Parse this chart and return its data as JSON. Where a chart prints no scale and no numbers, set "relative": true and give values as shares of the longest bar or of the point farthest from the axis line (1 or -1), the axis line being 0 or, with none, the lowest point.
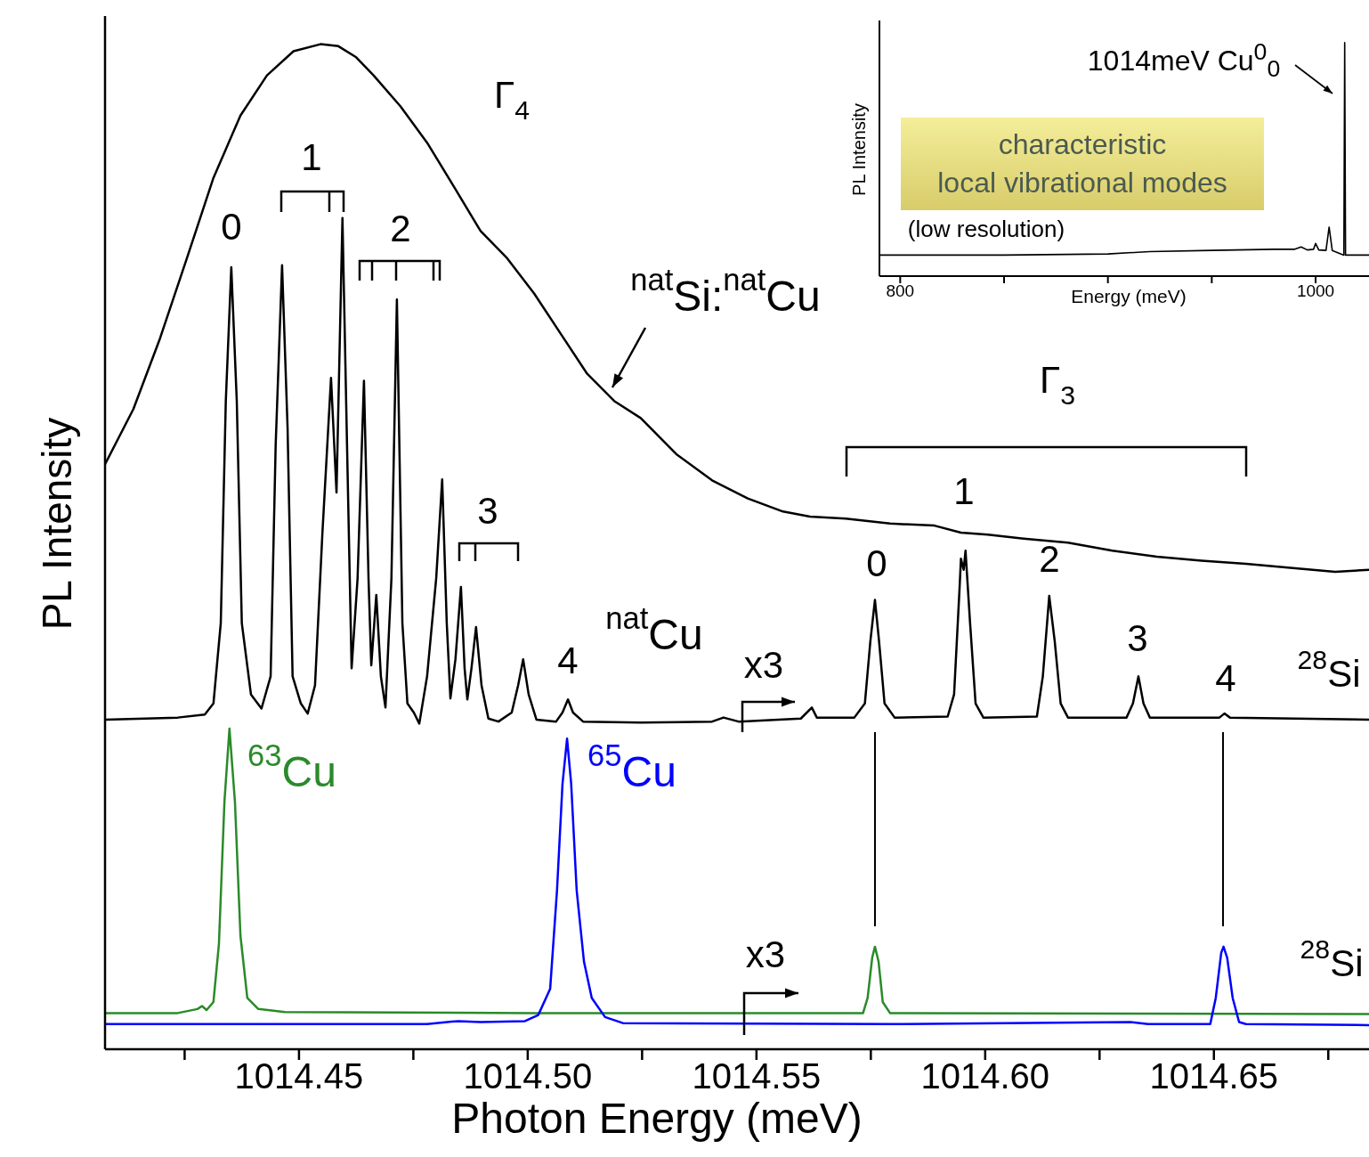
{
  "chart_data": [
    {
      "type": "line",
      "xlabel": "Photon Energy (meV)",
      "ylabel": "PL Intensity",
      "relative": true,
      "xlim": [
        1014.4076,
        1014.6839
      ],
      "xticks": [
        {
          "value": 1014.425,
          "label": null
        },
        1014.45,
        {
          "value": 1014.475,
          "label": null
        },
        {
          "value": 1014.5,
          "label": "1014.50"
        },
        {
          "value": 1014.525,
          "label": null
        },
        1014.55,
        {
          "value": 1014.575,
          "label": null
        },
        {
          "value": 1014.6,
          "label": "1014.60"
        },
        {
          "value": 1014.625,
          "label": null
        },
        1014.65,
        {
          "value": 1014.675,
          "label": null
        }
      ],
      "series": [
        {
          "name": "$^{nat}$Si:$^{nat}$Cu",
          "color": "#000000",
          "x": [
            1014.4076,
            1014.4138,
            1014.4196,
            1014.4255,
            1014.4313,
            1014.4372,
            1014.443,
            1014.4488,
            1014.4547,
            1014.4586,
            1014.4625,
            1014.4663,
            1014.4722,
            1014.478,
            1014.4839,
            1014.4897,
            1014.4955,
            1014.5014,
            1014.5072,
            1014.513,
            1014.5189,
            1014.5247,
            1014.5325,
            1014.5403,
            1014.5481,
            1014.5558,
            1014.5617,
            1014.5695,
            1014.5792,
            1014.5889,
            1014.5947,
            1014.6006,
            1014.6084,
            1014.6181,
            1014.6278,
            1014.6375,
            1014.6473,
            1014.657,
            1014.6667,
            1014.6765,
            1014.6839
          ],
          "values": [
            0.582,
            0.637,
            0.707,
            0.787,
            0.867,
            0.929,
            0.969,
            0.993,
            1.0,
            0.998,
            0.987,
            0.969,
            0.938,
            0.902,
            0.858,
            0.814,
            0.787,
            0.752,
            0.712,
            0.672,
            0.645,
            0.628,
            0.592,
            0.566,
            0.548,
            0.535,
            0.53,
            0.528,
            0.523,
            0.521,
            0.514,
            0.512,
            0.508,
            0.504,
            0.496,
            0.49,
            0.486,
            0.483,
            0.479,
            0.475,
            0.477
          ]
        },
        {
          "name": "$^{nat}$Cu",
          "color": "#000000",
          "x": [
            1014.4076,
            1014.4235,
            1014.4294,
            1014.4313,
            1014.4329,
            1014.434,
            1014.4352,
            1014.4364,
            1014.4375,
            1014.4395,
            1014.4418,
            1014.4438,
            1014.4449,
            1014.4463,
            1014.4475,
            1014.4486,
            1014.4504,
            1014.4519,
            1014.4535,
            1014.4551,
            1014.457,
            1014.4582,
            1014.4595,
            1014.4605,
            1014.4615,
            1014.4628,
            1014.4642,
            1014.4652,
            1014.4658,
            1014.4669,
            1014.4679,
            1014.4689,
            1014.4702,
            1014.4714,
            1014.4726,
            1014.4737,
            1014.4751,
            1014.4763,
            1014.478,
            1014.48,
            1014.4813,
            1014.4823,
            1014.4831,
            1014.4842,
            1014.4854,
            1014.4862,
            1014.4868,
            1014.4877,
            1014.4887,
            1014.4899,
            1014.4914,
            1014.4936,
            1014.4965,
            1014.4979,
            1014.499,
            1014.5002,
            1014.5019,
            1014.5062,
            1014.5076,
            1014.5088,
            1014.5099,
            1014.5121,
            1014.5247,
            1014.5403,
            1014.5428,
            1014.5461,
            1014.5597,
            1014.5621,
            1014.5632,
            1014.5714,
            1014.5737,
            1014.5749,
            1014.5759,
            1014.5768,
            1014.578,
            1014.5802,
            1014.5918,
            1014.5932,
            1014.5944,
            1014.5947,
            1014.5953,
            1014.5957,
            1014.5967,
            1014.5979,
            1014.5996,
            1014.6113,
            1014.6126,
            1014.614,
            1014.6152,
            1014.6165,
            1014.6181,
            1014.6309,
            1014.6323,
            1014.6335,
            1014.6346,
            1014.636,
            1014.6512,
            1014.6523,
            1014.6535,
            1014.6839
          ],
          "values": [
            0.328,
            0.33,
            0.333,
            0.344,
            0.424,
            0.645,
            0.778,
            0.645,
            0.424,
            0.353,
            0.339,
            0.371,
            0.601,
            0.78,
            0.619,
            0.371,
            0.344,
            0.334,
            0.362,
            0.512,
            0.668,
            0.554,
            0.827,
            0.601,
            0.379,
            0.468,
            0.665,
            0.468,
            0.382,
            0.452,
            0.371,
            0.34,
            0.468,
            0.746,
            0.424,
            0.344,
            0.335,
            0.324,
            0.371,
            0.469,
            0.567,
            0.424,
            0.349,
            0.388,
            0.46,
            0.379,
            0.348,
            0.379,
            0.42,
            0.362,
            0.329,
            0.326,
            0.335,
            0.362,
            0.388,
            0.353,
            0.328,
            0.326,
            0.335,
            0.348,
            0.335,
            0.326,
            0.325,
            0.326,
            0.33,
            0.326,
            0.329,
            0.34,
            0.33,
            0.33,
            0.344,
            0.406,
            0.447,
            0.406,
            0.344,
            0.33,
            0.331,
            0.353,
            0.459,
            0.488,
            0.477,
            0.496,
            0.424,
            0.344,
            0.33,
            0.331,
            0.371,
            0.451,
            0.406,
            0.344,
            0.33,
            0.33,
            0.344,
            0.371,
            0.344,
            0.33,
            0.33,
            0.334,
            0.33,
            0.328
          ]
        },
        {
          "name": "$^{63}$Cu",
          "color": "#2a8a2a",
          "x": [
            1014.4076,
            1014.4235,
            1014.4278,
            1014.4288,
            1014.4298,
            1014.4313,
            1014.4325,
            1014.4337,
            1014.4348,
            1014.436,
            1014.4372,
            1014.4387,
            1014.4411,
            1014.4469,
            1014.5014,
            1014.5733,
            1014.5743,
            1014.5753,
            1014.5759,
            1014.5767,
            1014.5776,
            1014.5792,
            1014.6839
          ],
          "values": [
            0.036,
            0.036,
            0.04,
            0.043,
            0.039,
            0.047,
            0.105,
            0.246,
            0.319,
            0.246,
            0.113,
            0.051,
            0.04,
            0.037,
            0.036,
            0.036,
            0.051,
            0.091,
            0.102,
            0.087,
            0.047,
            0.036,
            0.035
          ]
        },
        {
          "name": "$^{65}$Cu",
          "color": "#0000ff",
          "x": [
            1014.4076,
            1014.478,
            1014.4848,
            1014.4897,
            1014.4994,
            1014.5023,
            1014.5049,
            1014.5064,
            1014.5076,
            1014.5086,
            1014.5095,
            1014.5107,
            1014.5123,
            1014.514,
            1014.5169,
            1014.5208,
            1014.5792,
            1014.6317,
            1014.6356,
            1014.6492,
            1014.6504,
            1014.6516,
            1014.6521,
            1014.6529,
            1014.6541,
            1014.6555,
            1014.657,
            1014.6839
          ],
          "values": [
            0.025,
            0.025,
            0.028,
            0.027,
            0.028,
            0.034,
            0.06,
            0.158,
            0.264,
            0.309,
            0.264,
            0.158,
            0.087,
            0.051,
            0.032,
            0.026,
            0.025,
            0.027,
            0.025,
            0.025,
            0.051,
            0.096,
            0.102,
            0.091,
            0.051,
            0.027,
            0.025,
            0.024
          ]
        }
      ],
      "annotations": [
        "Γ$_{4}$",
        "1",
        "0",
        "2",
        "3",
        "4",
        "x3",
        "x3",
        "Γ$_{3}$",
        "1",
        "0",
        "2",
        "3",
        "4",
        "$^{28}$Si",
        "$^{28}$Si"
      ]
    },
    {
      "type": "line",
      "xlabel": "Energy (meV)",
      "ylabel": "PL Intensity",
      "relative": true,
      "xlim": [
        790,
        1025.7
      ],
      "xticks": [
        800,
        {
          "value": 850,
          "label": null
        },
        {
          "value": 900,
          "label": null
        },
        {
          "value": 950,
          "label": null
        },
        1000
      ],
      "series": [
        {
          "color": "#000000",
          "x": [
            790,
            850,
            900,
            920,
            950,
            980,
            990,
            993,
            996,
            999,
            1000,
            1001.5,
            1005,
            1006.5,
            1008,
            1013.6,
            1014,
            1014.4,
            1025.7
          ],
          "values": [
            0.09,
            0.09,
            0.095,
            0.105,
            0.11,
            0.115,
            0.115,
            0.125,
            0.112,
            0.115,
            0.14,
            0.112,
            0.11,
            0.21,
            0.11,
            0.09,
            1,
            0.09,
            0.09
          ]
        }
      ],
      "annotations": [
        "1014meV Cu$^{0}$$_{0}$",
        "characteristic\nlocal vibrational modes",
        "(low resolution)"
      ]
    }
  ]
}
